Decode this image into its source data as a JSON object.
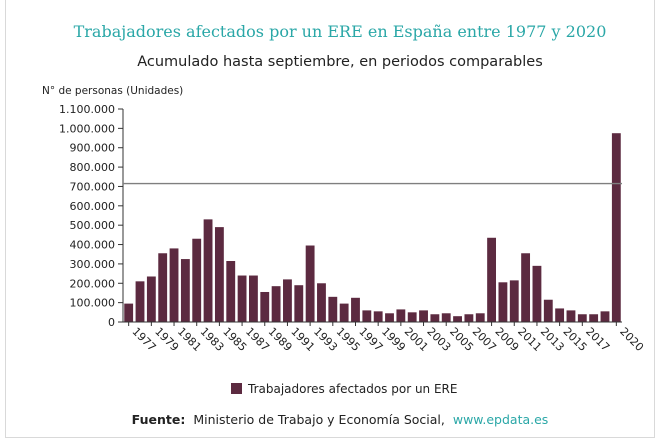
{
  "chart_data": {
    "type": "bar",
    "title": "Trabajadores afectados por un ERE en España entre 1977 y 2020",
    "subtitle": "Acumulado hasta septiembre, en periodos comparables",
    "ylabel": "N° de personas (Unidades)",
    "xlabel": "",
    "ylim": [
      0,
      1100000
    ],
    "yticks": [
      0,
      100000,
      200000,
      300000,
      400000,
      500000,
      600000,
      700000,
      800000,
      900000,
      1000000,
      1100000
    ],
    "ytick_labels": [
      "0",
      "100.000",
      "200.000",
      "300.000",
      "400.000",
      "500.000",
      "600.000",
      "700.000",
      "800.000",
      "900.000",
      "1.000.000",
      "1.100.000"
    ],
    "categories": [
      "1977",
      "1978",
      "1979",
      "1980",
      "1981",
      "1982",
      "1983",
      "1984",
      "1985",
      "1986",
      "1987",
      "1988",
      "1989",
      "1990",
      "1991",
      "1992",
      "1993",
      "1994",
      "1995",
      "1996",
      "1997",
      "1998",
      "1999",
      "2000",
      "2001",
      "2002",
      "2003",
      "2004",
      "2005",
      "2006",
      "2007",
      "2008",
      "2009",
      "2010",
      "2011",
      "2012",
      "2013",
      "2014",
      "2015",
      "2016",
      "2017",
      "2018",
      "2019",
      "2020"
    ],
    "xtick_labels": [
      "1977",
      "1979",
      "1981",
      "1983",
      "1985",
      "1987",
      "1989",
      "1991",
      "1993",
      "1995",
      "1997",
      "1999",
      "2001",
      "2003",
      "2005",
      "2007",
      "2009",
      "2011",
      "2013",
      "2015",
      "2017",
      "2020"
    ],
    "series": [
      {
        "name": "Trabajadores afectados por un ERE",
        "color": "#5c2a40",
        "values": [
          95000,
          210000,
          235000,
          355000,
          380000,
          325000,
          430000,
          530000,
          490000,
          315000,
          240000,
          240000,
          155000,
          185000,
          220000,
          190000,
          395000,
          200000,
          130000,
          95000,
          125000,
          60000,
          55000,
          45000,
          65000,
          50000,
          60000,
          40000,
          45000,
          30000,
          40000,
          45000,
          435000,
          205000,
          215000,
          355000,
          290000,
          115000,
          70000,
          60000,
          40000,
          40000,
          55000,
          975000
        ]
      }
    ],
    "reference_line": 715000,
    "grid": false,
    "legend": {
      "position": "bottom",
      "label": "Trabajadores afectados por un ERE"
    }
  },
  "footer": {
    "source_label": "Fuente:",
    "source_text": "Ministerio de Trabajo y Economía Social,",
    "source_link": "www.epdata.es"
  },
  "colors": {
    "title": "#2aa7a7",
    "bar": "#5c2a40",
    "reference_line": "#7f7f7f",
    "link": "#2aa7a7"
  }
}
